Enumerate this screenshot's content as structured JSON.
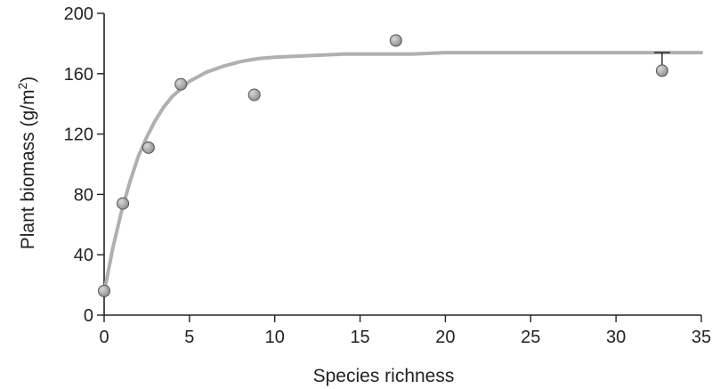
{
  "chart_data": {
    "type": "scatter",
    "title": "",
    "xlabel": "Species richness",
    "ylabel": "Plant biomass (g/m",
    "ylabel_sup": "2",
    "ylabel_end": ")",
    "xlim": [
      0,
      35
    ],
    "ylim": [
      0,
      200
    ],
    "xticks": [
      0,
      5,
      10,
      15,
      20,
      25,
      30,
      35
    ],
    "yticks": [
      0,
      40,
      80,
      120,
      160,
      200
    ],
    "grid": false,
    "legend": "none",
    "colors": {
      "point": "#8c8c8c",
      "curve": "#b0b0b0",
      "axis": "#222222"
    },
    "series": [
      {
        "points": [
          {
            "x": 0.0,
            "y": 16
          },
          {
            "x": 1.1,
            "y": 74
          },
          {
            "x": 2.6,
            "y": 111
          },
          {
            "x": 4.5,
            "y": 153
          },
          {
            "x": 8.8,
            "y": 146
          },
          {
            "x": 17.1,
            "y": 182
          },
          {
            "x": 32.7,
            "y": 162
          }
        ],
        "error_bars": [
          {
            "x": 32.7,
            "y": 162,
            "upper": 174
          }
        ]
      }
    ],
    "fit_curve": {
      "x": [
        0,
        0.5,
        1,
        1.5,
        2,
        2.5,
        3,
        3.5,
        4,
        5,
        6,
        7,
        8,
        9,
        10,
        12,
        14,
        16,
        18,
        20,
        22,
        25,
        28,
        31,
        35
      ],
      "y": [
        15,
        44,
        68,
        88,
        105,
        118,
        129,
        138,
        145,
        155,
        161,
        165,
        168,
        170,
        171,
        172,
        173,
        173,
        173,
        174,
        174,
        174,
        174,
        174,
        174
      ]
    }
  }
}
